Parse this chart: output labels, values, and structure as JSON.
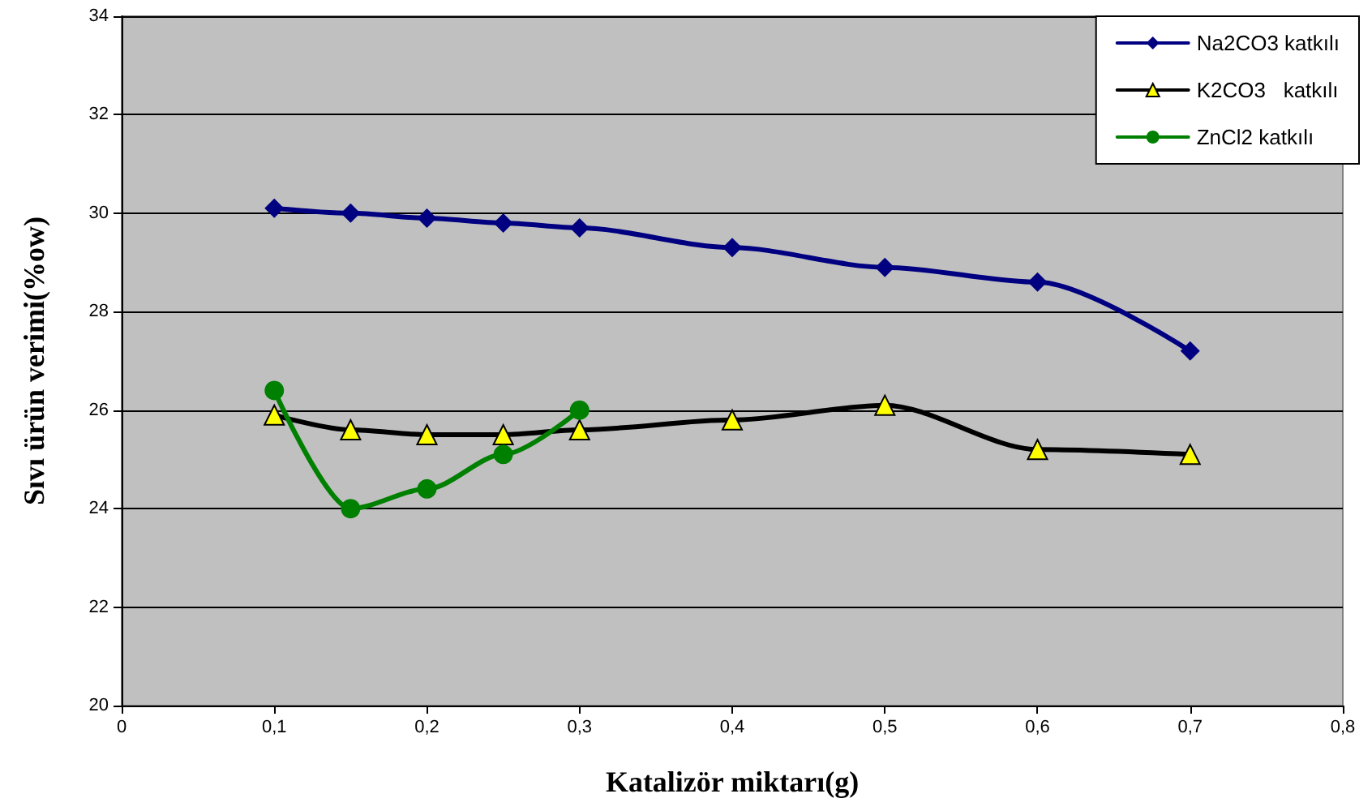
{
  "chart_data": {
    "type": "line",
    "xlabel": "Katalizör miktarı(g)",
    "ylabel": "Sıvı ürün verimi(%ow)",
    "xlim": [
      0,
      0.8
    ],
    "xticks": [
      0,
      {
        "value": 0.1,
        "label": "0,1"
      },
      {
        "value": 0.2,
        "label": "0,2"
      },
      {
        "value": 0.3,
        "label": "0,3"
      },
      {
        "value": 0.4,
        "label": "0,4"
      },
      {
        "value": 0.5,
        "label": "0,5"
      },
      {
        "value": 0.6,
        "label": "0,6"
      },
      {
        "value": 0.7,
        "label": "0,7"
      },
      {
        "value": 0.8,
        "label": "0,8"
      }
    ],
    "ylim": [
      20,
      34
    ],
    "yticks": [
      20,
      22,
      24,
      26,
      28,
      30,
      32,
      34
    ],
    "grid": "y",
    "legend": "top right",
    "series": [
      {
        "name": "Na2CO3 katkılı",
        "color": "#000080",
        "marker": "diamond",
        "x": [
          0.1,
          0.15,
          0.2,
          0.25,
          0.3,
          0.4,
          0.5,
          0.6,
          0.7
        ],
        "values": [
          30.1,
          30.0,
          29.9,
          29.8,
          29.7,
          29.3,
          28.9,
          28.6,
          27.2
        ]
      },
      {
        "name": "K2CO3   katkılı",
        "color": "#000000",
        "colors": [
          "#ffff00",
          "#ffff00",
          "#ffff00",
          "#ffff00",
          "#ffff00",
          "#ffff00",
          "#ffff00",
          "#ffff00",
          "#ffff00"
        ],
        "marker": "triangle",
        "x": [
          0.1,
          0.15,
          0.2,
          0.25,
          0.3,
          0.4,
          0.5,
          0.6,
          0.7
        ],
        "values": [
          25.9,
          25.6,
          25.5,
          25.5,
          25.6,
          25.8,
          26.1,
          25.2,
          25.1
        ]
      },
      {
        "name": "ZnCl2 katkılı",
        "color": "#008000",
        "marker": "circle",
        "x": [
          0.1,
          0.15,
          0.2,
          0.25,
          0.3
        ],
        "values": [
          26.4,
          24.0,
          24.4,
          25.1,
          26.0
        ]
      }
    ]
  }
}
